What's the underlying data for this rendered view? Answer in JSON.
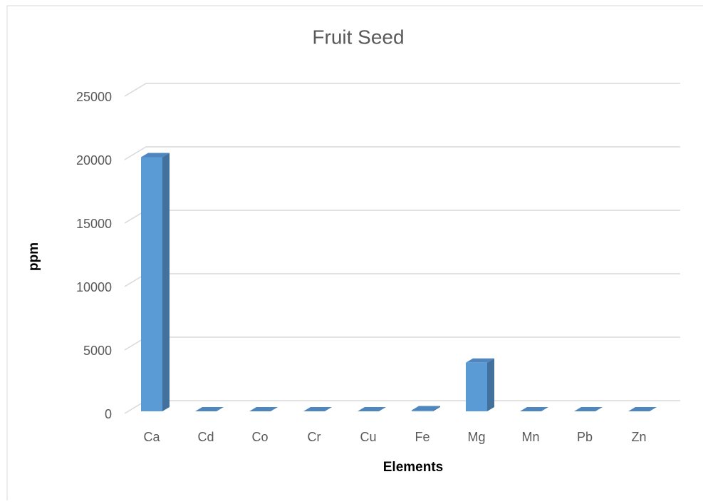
{
  "chart_data": {
    "type": "bar",
    "title": "Fruit Seed",
    "x_label": "Elements",
    "y_label": "ppm",
    "categories": [
      "Ca",
      "Cd",
      "Co",
      "Cr",
      "Cu",
      "Fe",
      "Mg",
      "Mn",
      "Pb",
      "Zn"
    ],
    "values": [
      20200,
      30,
      30,
      30,
      40,
      250,
      4000,
      40,
      30,
      100
    ],
    "color": "#5b9bd5",
    "ylim": [
      0,
      25000
    ],
    "yticks": [
      0,
      5000,
      10000,
      15000,
      20000,
      25000
    ],
    "grid": true
  }
}
